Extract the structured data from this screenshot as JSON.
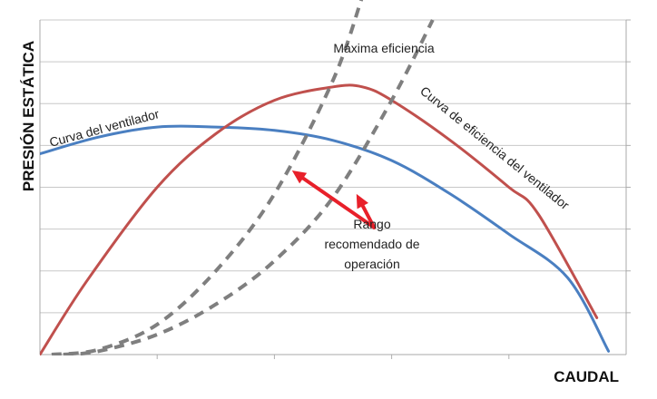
{
  "chart_data": {
    "type": "line",
    "xlabel": "CAUDAL",
    "ylabel": "PRESIÓN ESTÁTICA",
    "xlim": [
      0,
      10
    ],
    "ylim": [
      0,
      10
    ],
    "grid": true,
    "series": [
      {
        "name": "Curva del ventilador",
        "color": "#4a7fc1",
        "style": "solid",
        "x": [
          0,
          1,
          2,
          3,
          4,
          5,
          6,
          7,
          8,
          9,
          9.7
        ],
        "y": [
          6.0,
          6.5,
          6.8,
          6.8,
          6.7,
          6.4,
          5.8,
          4.8,
          3.6,
          2.3,
          0.1
        ]
      },
      {
        "name": "Curva de eficiencia del ventilador",
        "color": "#c0504d",
        "style": "solid",
        "x": [
          0,
          0.8,
          2,
          3,
          4,
          5,
          5.5,
          6,
          7,
          8,
          8.5,
          9.5
        ],
        "y": [
          0,
          2.2,
          5.0,
          6.6,
          7.6,
          8.0,
          8.0,
          7.6,
          6.4,
          5.0,
          4.2,
          1.1
        ]
      },
      {
        "name": "Máxima eficiencia",
        "color": "#7f7f7f",
        "style": "dashed",
        "x": [
          0.2,
          1,
          2,
          3,
          4,
          5,
          5.5
        ],
        "y": [
          0,
          0.15,
          0.9,
          2.5,
          4.8,
          8.2,
          10.7
        ]
      },
      {
        "name": "",
        "color": "#7f7f7f",
        "style": "dashed",
        "x": [
          0.4,
          1,
          2,
          3,
          4,
          5,
          6,
          6.7
        ],
        "y": [
          0,
          0.1,
          0.6,
          1.5,
          2.8,
          4.7,
          7.6,
          10.0
        ]
      }
    ],
    "annotations": [
      {
        "text": "Máxima eficiencia"
      },
      {
        "text": "Curva del ventilador"
      },
      {
        "text": "Curva de eficiencia del ventilador"
      },
      {
        "lines": [
          "Rango",
          "recomendado de",
          "operación"
        ]
      }
    ],
    "arrow_color": "#e8202a",
    "arrows": [
      {
        "from": [
          5.7,
          3.8
        ],
        "to": [
          4.3,
          5.5
        ]
      },
      {
        "from": [
          5.7,
          3.8
        ],
        "to": [
          5.4,
          4.8
        ]
      }
    ]
  }
}
